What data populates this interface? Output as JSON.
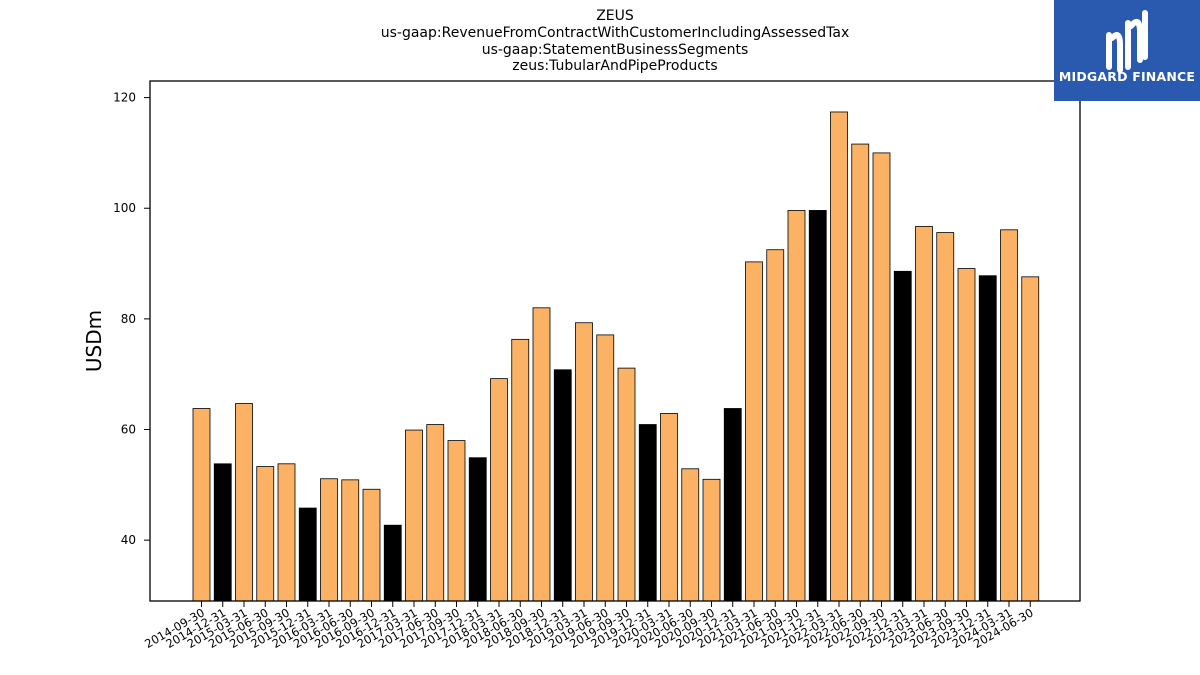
{
  "title_lines": [
    "ZEUS",
    "us-gaap:RevenueFromContractWithCustomerIncludingAssessedTax",
    "us-gaap:StatementBusinessSegments",
    "zeus:TubularAndPipeProducts"
  ],
  "logo": {
    "text": "MIDGARD FINANCE",
    "color": "#2a59b0"
  },
  "chart_data": {
    "type": "bar",
    "title": "ZEUS",
    "ylabel": "USDm",
    "xlabel": "",
    "ylim": [
      29,
      123
    ],
    "yticks": [
      40,
      60,
      80,
      100,
      120
    ],
    "grid": false,
    "colors": {
      "default": "#fbb264",
      "highlight": "#000000"
    },
    "categories": [
      "2014-09-30",
      "2014-12-31",
      "2015-03-31",
      "2015-06-30",
      "2015-09-30",
      "2015-12-31",
      "2016-03-31",
      "2016-06-30",
      "2016-09-30",
      "2016-12-31",
      "2017-03-31",
      "2017-06-30",
      "2017-09-30",
      "2017-12-31",
      "2018-03-31",
      "2018-06-30",
      "2018-09-30",
      "2018-12-31",
      "2019-03-31",
      "2019-06-30",
      "2019-09-30",
      "2019-12-31",
      "2020-03-31",
      "2020-06-30",
      "2020-09-30",
      "2020-12-31",
      "2021-03-31",
      "2021-06-30",
      "2021-09-30",
      "2021-12-31",
      "2022-03-31",
      "2022-06-30",
      "2022-09-30",
      "2022-12-31",
      "2023-03-31",
      "2023-06-30",
      "2023-09-30",
      "2023-12-31",
      "2024-03-31",
      "2024-06-30"
    ],
    "values": [
      63.8,
      53.8,
      64.7,
      53.3,
      53.8,
      45.8,
      51.1,
      50.9,
      49.2,
      42.7,
      59.9,
      60.9,
      58.0,
      54.9,
      69.2,
      76.3,
      82.0,
      70.8,
      79.3,
      77.1,
      71.1,
      60.9,
      62.9,
      52.9,
      51.0,
      63.8,
      90.3,
      92.5,
      99.6,
      99.6,
      117.4,
      111.6,
      110.0,
      88.6,
      96.7,
      95.6,
      89.1,
      87.8,
      96.1,
      87.6
    ],
    "highlight": [
      false,
      true,
      false,
      false,
      false,
      true,
      false,
      false,
      false,
      true,
      false,
      false,
      false,
      true,
      false,
      false,
      false,
      true,
      false,
      false,
      false,
      true,
      false,
      false,
      false,
      true,
      false,
      false,
      false,
      true,
      false,
      false,
      false,
      true,
      false,
      false,
      false,
      true,
      false,
      false
    ]
  }
}
